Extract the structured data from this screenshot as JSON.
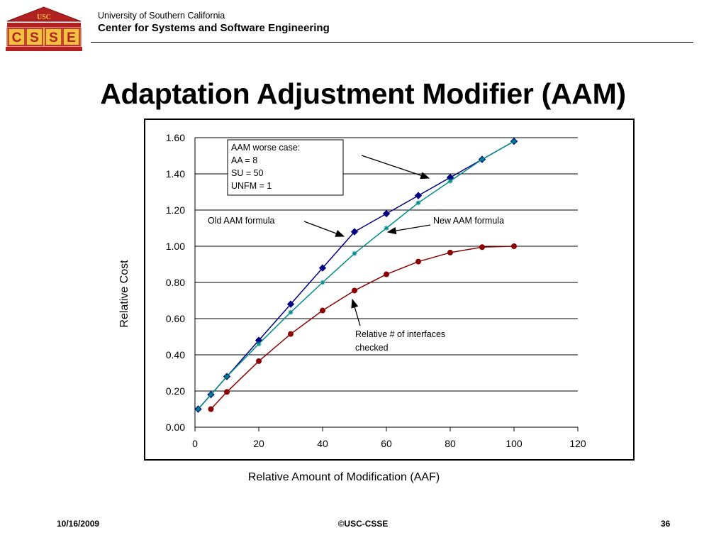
{
  "header": {
    "logo_text_top": "USC",
    "logo_letters": [
      "C",
      "S",
      "S",
      "E"
    ],
    "university": "University of Southern California",
    "center": "Center for Systems and Software Engineering"
  },
  "slide": {
    "title": "Adaptation Adjustment Modifier (AAM)"
  },
  "colors": {
    "old_series": "#000080",
    "new_series": "#008B8B",
    "interfaces_series": "#8B0000",
    "logo_red": "#B22222",
    "logo_gold": "#F0C040"
  },
  "chart_data": {
    "type": "line",
    "xlabel": "Relative Amount of Modification (AAF)",
    "ylabel": "Relative Cost",
    "xlim": [
      0,
      120
    ],
    "ylim": [
      0,
      1.6
    ],
    "x_ticks": [
      "0",
      "20",
      "40",
      "60",
      "80",
      "100",
      "120"
    ],
    "y_ticks": [
      "0.00",
      "0.20",
      "0.40",
      "0.60",
      "0.80",
      "1.00",
      "1.20",
      "1.40",
      "1.60"
    ],
    "grid": "horizontal",
    "series": [
      {
        "marker": "diamond",
        "x": [
          1,
          5,
          10,
          20,
          30,
          40,
          50,
          60,
          70,
          80,
          90,
          100
        ],
        "y": [
          0.1,
          0.18,
          0.28,
          0.48,
          0.68,
          0.88,
          1.08,
          1.18,
          1.28,
          1.38,
          1.48,
          1.58
        ]
      },
      {
        "marker": "star",
        "x": [
          1,
          5,
          10,
          20,
          30,
          40,
          50,
          60,
          70,
          80,
          90,
          100
        ],
        "y": [
          0.1,
          0.18,
          0.28,
          0.46,
          0.635,
          0.8,
          0.96,
          1.1,
          1.24,
          1.36,
          1.48,
          1.58
        ]
      },
      {
        "marker": "circle",
        "x": [
          5,
          10,
          20,
          30,
          40,
          50,
          60,
          70,
          80,
          90,
          100
        ],
        "y": [
          0.1,
          0.195,
          0.365,
          0.515,
          0.645,
          0.755,
          0.845,
          0.915,
          0.965,
          0.995,
          1.0
        ]
      }
    ],
    "annotations": {
      "box_lines": [
        "AAM worse case:",
        "AA = 8",
        "SU = 50",
        "UNFM = 1"
      ],
      "old_label": "Old AAM formula",
      "new_label": "New  AAM formula",
      "interfaces_label_lines": [
        "Relative # of interfaces",
        "checked"
      ]
    }
  },
  "footer": {
    "date": "10/16/2009",
    "copyright": "©USC-CSSE",
    "page": "36"
  }
}
